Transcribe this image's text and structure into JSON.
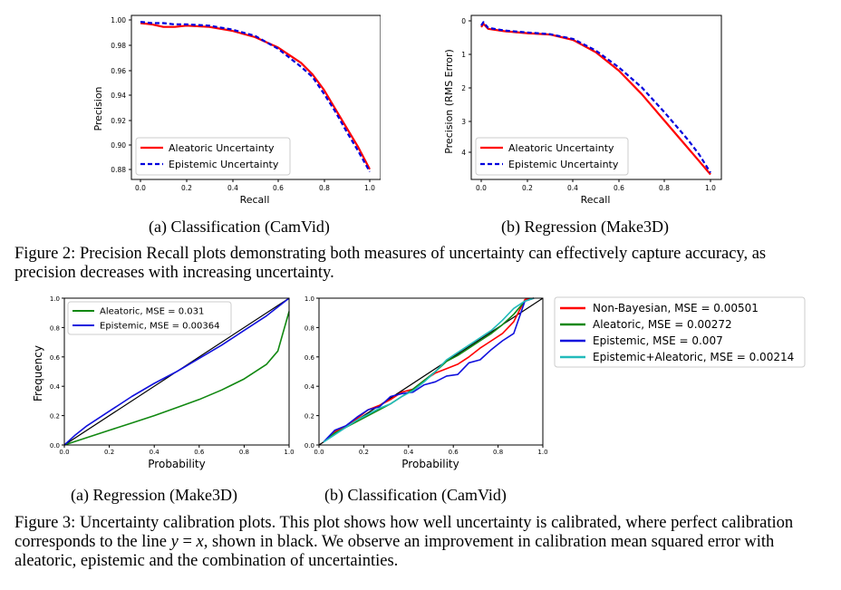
{
  "figure2": {
    "panel_a": {
      "caption": "(a) Classification (CamVid)",
      "xlabel": "Recall",
      "ylabel": "Precision",
      "xticks": [
        "0.0",
        "0.2",
        "0.4",
        "0.6",
        "0.8",
        "1.0"
      ],
      "yticks": [
        "1.00",
        "0.98",
        "0.96",
        "0.94",
        "0.92",
        "0.90",
        "0.88"
      ],
      "legend": [
        "Aleatoric Uncertainty",
        "Epistemic Uncertainty"
      ]
    },
    "panel_b": {
      "caption": "(b) Regression (Make3D)",
      "xlabel": "Recall",
      "ylabel": "Precision (RMS Error)",
      "xticks": [
        "0.0",
        "0.2",
        "0.4",
        "0.6",
        "0.8",
        "1.0"
      ],
      "yticks": [
        "0",
        "1",
        "2",
        "3",
        "4"
      ],
      "legend": [
        "Aleatoric Uncertainty",
        "Epistemic Uncertainty"
      ]
    },
    "caption_label": "Figure 2:",
    "caption_text": "Precision Recall plots demonstrating both measures of uncertainty can effectively capture accuracy, as precision decreases with increasing uncertainty."
  },
  "figure3": {
    "panel_a": {
      "caption": "(a) Regression (Make3D)",
      "xlabel": "Probability",
      "ylabel": "Frequency",
      "xticks": [
        "0.0",
        "0.2",
        "0.4",
        "0.6",
        "0.8",
        "1.0"
      ],
      "yticks": [
        "0.0",
        "0.2",
        "0.4",
        "0.6",
        "0.8",
        "1.0"
      ],
      "legend": [
        "Aleatoric, MSE = 0.031",
        "Epistemic, MSE = 0.00364"
      ]
    },
    "panel_b": {
      "caption": "(b) Classification (CamVid)",
      "xlabel": "Probability",
      "xticks": [
        "0.0",
        "0.2",
        "0.4",
        "0.6",
        "0.8",
        "1.0"
      ],
      "yticks": [
        "0.0",
        "0.2",
        "0.4",
        "0.6",
        "0.8",
        "1.0"
      ]
    },
    "legend": [
      "Non-Bayesian, MSE = 0.00501",
      "Aleatoric, MSE = 0.00272",
      "Epistemic, MSE = 0.007",
      "Epistemic+Aleatoric, MSE = 0.00214"
    ],
    "caption_label": "Figure 3:",
    "caption_part1": "Uncertainty calibration plots.  This plot shows how well uncertainty is calibrated, where perfect calibration corresponds to the line ",
    "caption_eq_y": "y",
    "caption_eq_op": " = ",
    "caption_eq_x": "x",
    "caption_part2": ", shown in black.  We observe an improvement in calibration mean squared error with aleatoric, epistemic and the combination of uncertainties."
  },
  "colors": {
    "aleatoric_pr": "#ff0000",
    "epistemic_pr": "#0000dd",
    "non_bayesian": "#ff0000",
    "aleatoric": "#118811",
    "epistemic": "#1111dd",
    "epistemic_aleatoric": "#22bbbb",
    "perfect": "#000000"
  },
  "chart_data": [
    {
      "type": "line",
      "xlabel": "Recall",
      "ylabel": "Precision",
      "xlim": [
        0,
        1
      ],
      "ylim": [
        0.875,
        1.003
      ],
      "series": [
        {
          "name": "Aleatoric Uncertainty",
          "style": "solid",
          "x": [
            0.0,
            0.05,
            0.1,
            0.15,
            0.2,
            0.3,
            0.4,
            0.5,
            0.6,
            0.7,
            0.75,
            0.8,
            0.85,
            0.9,
            0.95,
            1.0
          ],
          "y": [
            0.997,
            0.996,
            0.994,
            0.994,
            0.995,
            0.994,
            0.991,
            0.986,
            0.978,
            0.966,
            0.957,
            0.945,
            0.93,
            0.915,
            0.9,
            0.883
          ]
        },
        {
          "name": "Epistemic Uncertainty",
          "style": "dashed",
          "x": [
            0.0,
            0.05,
            0.1,
            0.15,
            0.2,
            0.3,
            0.4,
            0.5,
            0.6,
            0.7,
            0.75,
            0.8,
            0.85,
            0.9,
            0.95,
            1.0
          ],
          "y": [
            0.998,
            0.997,
            0.997,
            0.996,
            0.996,
            0.995,
            0.992,
            0.987,
            0.977,
            0.963,
            0.955,
            0.942,
            0.928,
            0.912,
            0.897,
            0.881
          ]
        }
      ]
    },
    {
      "type": "line",
      "xlabel": "Recall",
      "ylabel": "Precision (RMS Error)",
      "xlim": [
        0,
        1
      ],
      "ylim": [
        4.75,
        -0.15
      ],
      "y_inverted": true,
      "series": [
        {
          "name": "Aleatoric Uncertainty",
          "style": "solid",
          "x": [
            0.0,
            0.01,
            0.03,
            0.1,
            0.2,
            0.3,
            0.4,
            0.5,
            0.6,
            0.7,
            0.8,
            0.9,
            0.95,
            1.0
          ],
          "y": [
            0.2,
            0.1,
            0.25,
            0.32,
            0.38,
            0.42,
            0.58,
            0.95,
            1.5,
            2.2,
            3.0,
            3.8,
            4.2,
            4.6
          ]
        },
        {
          "name": "Epistemic Uncertainty",
          "style": "dashed",
          "x": [
            0.0,
            0.01,
            0.03,
            0.1,
            0.2,
            0.3,
            0.4,
            0.5,
            0.6,
            0.7,
            0.8,
            0.9,
            0.95,
            1.0
          ],
          "y": [
            0.15,
            0.05,
            0.22,
            0.3,
            0.36,
            0.41,
            0.55,
            0.9,
            1.4,
            2.0,
            2.75,
            3.55,
            4.0,
            4.55
          ]
        }
      ]
    },
    {
      "type": "line",
      "xlabel": "Probability",
      "ylabel": "Frequency",
      "xlim": [
        0,
        1
      ],
      "ylim": [
        0,
        1
      ],
      "series": [
        {
          "name": "",
          "style": "reference",
          "x": [
            0,
            1
          ],
          "y": [
            0,
            1
          ]
        },
        {
          "name": "Aleatoric, MSE = 0.031",
          "x": [
            0.0,
            0.1,
            0.2,
            0.3,
            0.4,
            0.5,
            0.6,
            0.7,
            0.8,
            0.9,
            0.95,
            1.0
          ],
          "y": [
            0.0,
            0.05,
            0.1,
            0.15,
            0.2,
            0.255,
            0.31,
            0.375,
            0.45,
            0.55,
            0.64,
            0.91
          ]
        },
        {
          "name": "Epistemic, MSE = 0.00364",
          "x": [
            0.0,
            0.05,
            0.1,
            0.2,
            0.3,
            0.4,
            0.5,
            0.6,
            0.7,
            0.8,
            0.9,
            1.0
          ],
          "y": [
            0.0,
            0.07,
            0.13,
            0.23,
            0.33,
            0.42,
            0.5,
            0.59,
            0.68,
            0.78,
            0.88,
            1.0
          ]
        }
      ]
    },
    {
      "type": "line",
      "xlabel": "Probability",
      "ylabel": "",
      "xlim": [
        0,
        1
      ],
      "ylim": [
        0,
        1
      ],
      "series": [
        {
          "name": "",
          "style": "reference",
          "x": [
            0,
            1
          ],
          "y": [
            0,
            1
          ]
        },
        {
          "name": "Non-Bayesian, MSE = 0.00501",
          "x": [
            0.02,
            0.07,
            0.12,
            0.17,
            0.22,
            0.27,
            0.32,
            0.37,
            0.42,
            0.47,
            0.52,
            0.57,
            0.62,
            0.67,
            0.72,
            0.77,
            0.82,
            0.87,
            0.92,
            0.96
          ],
          "y": [
            0.02,
            0.09,
            0.13,
            0.18,
            0.24,
            0.27,
            0.31,
            0.36,
            0.38,
            0.44,
            0.49,
            0.52,
            0.55,
            0.6,
            0.66,
            0.71,
            0.76,
            0.84,
            0.99,
            1.0
          ]
        },
        {
          "name": "Aleatoric, MSE = 0.00272",
          "x": [
            0.02,
            0.07,
            0.12,
            0.17,
            0.22,
            0.27,
            0.32,
            0.37,
            0.42,
            0.47,
            0.52,
            0.57,
            0.62,
            0.67,
            0.72,
            0.77,
            0.82,
            0.87,
            0.92,
            0.96
          ],
          "y": [
            0.02,
            0.08,
            0.12,
            0.16,
            0.2,
            0.24,
            0.28,
            0.33,
            0.38,
            0.44,
            0.5,
            0.57,
            0.61,
            0.66,
            0.71,
            0.76,
            0.82,
            0.89,
            0.98,
            1.0
          ]
        },
        {
          "name": "Epistemic, MSE = 0.007",
          "x": [
            0.02,
            0.07,
            0.12,
            0.17,
            0.22,
            0.27,
            0.32,
            0.37,
            0.42,
            0.47,
            0.52,
            0.57,
            0.62,
            0.67,
            0.72,
            0.77,
            0.82,
            0.87,
            0.92,
            0.96
          ],
          "y": [
            0.02,
            0.1,
            0.13,
            0.19,
            0.24,
            0.26,
            0.33,
            0.35,
            0.36,
            0.41,
            0.43,
            0.47,
            0.48,
            0.56,
            0.58,
            0.65,
            0.71,
            0.76,
            0.98,
            1.0
          ]
        },
        {
          "name": "Epistemic+Aleatoric, MSE = 0.00214",
          "x": [
            0.02,
            0.07,
            0.12,
            0.17,
            0.22,
            0.27,
            0.32,
            0.37,
            0.42,
            0.47,
            0.52,
            0.57,
            0.62,
            0.67,
            0.72,
            0.77,
            0.82,
            0.87,
            0.92,
            0.96
          ],
          "y": [
            0.02,
            0.07,
            0.12,
            0.17,
            0.21,
            0.25,
            0.28,
            0.33,
            0.37,
            0.43,
            0.5,
            0.58,
            0.63,
            0.68,
            0.73,
            0.78,
            0.85,
            0.93,
            0.98,
            1.0
          ]
        }
      ]
    }
  ]
}
